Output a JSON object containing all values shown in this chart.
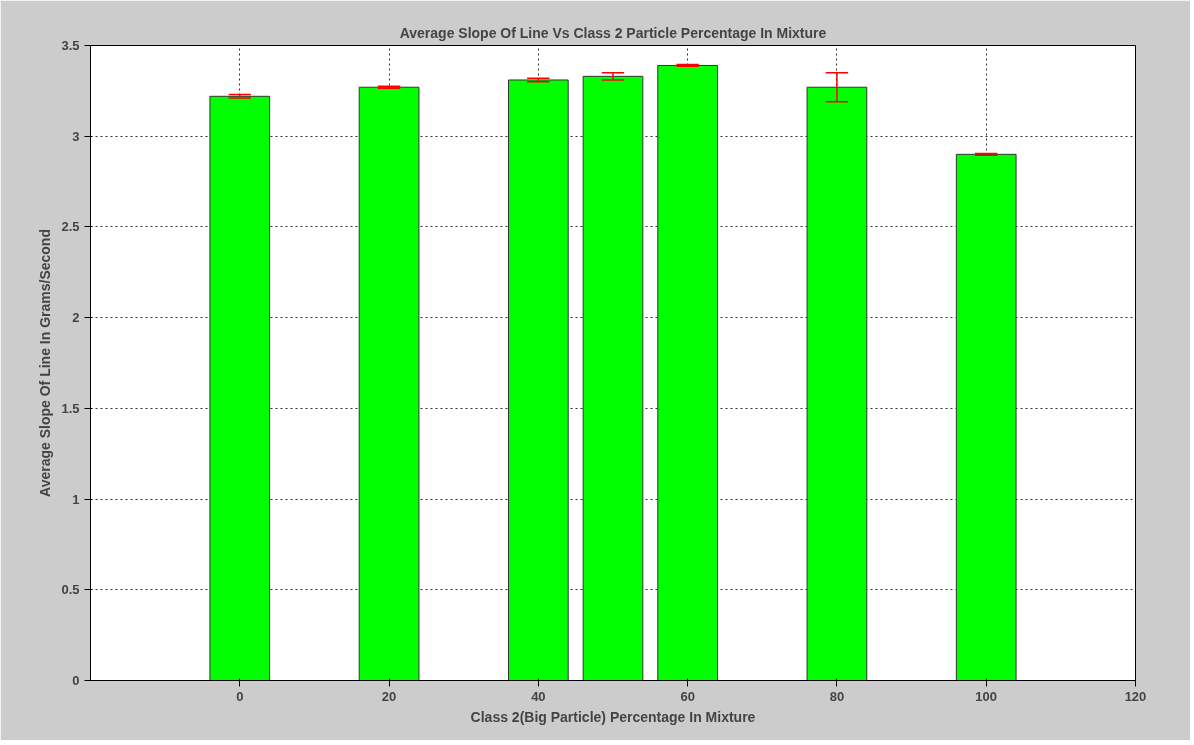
{
  "chart_data": {
    "type": "bar",
    "title": "Average Slope Of Line Vs Class 2 Particle Percentage In Mixture",
    "xlabel": "Class 2(Big Particle) Percentage In Mixture",
    "ylabel": "Average Slope Of Line In Grams/Second",
    "x": [
      0,
      20,
      40,
      50,
      60,
      80,
      100
    ],
    "values": [
      3.22,
      3.27,
      3.31,
      3.33,
      3.39,
      3.27,
      2.9
    ],
    "errors": [
      0.01,
      0.005,
      0.01,
      0.02,
      0.005,
      [
        3.19,
        3.35
      ],
      0.005
    ],
    "color": "#00ff00",
    "xlim": [
      -20,
      120
    ],
    "xticks": [
      0,
      20,
      40,
      60,
      80,
      100,
      120
    ],
    "ylim": [
      0,
      3.5
    ],
    "yticks": [
      0,
      0.5,
      1,
      1.5,
      2,
      2.5,
      3,
      3.5
    ],
    "grid": true
  }
}
